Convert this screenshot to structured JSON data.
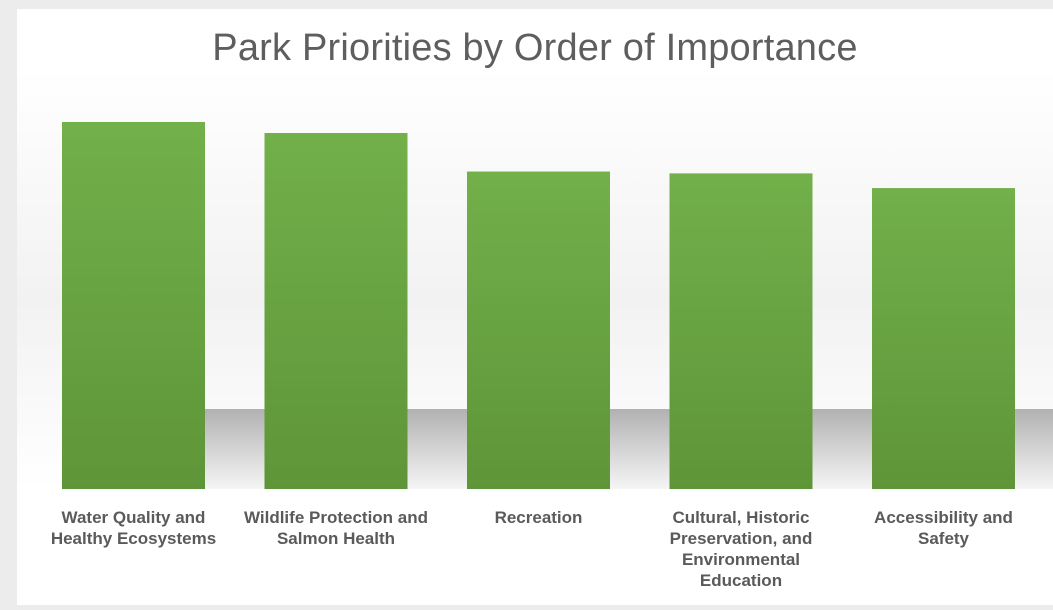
{
  "chart_data": {
    "type": "bar",
    "title": "Park Priorities by Order of Importance",
    "categories": [
      "Water Quality and Healthy Ecosystems",
      "Wildlife Protection and Salmon Health",
      "Recreation",
      "Cultural, Historic Preservation, and Environmental Education",
      "Accessibility and Safety"
    ],
    "values": [
      100,
      97,
      86.5,
      86,
      82
    ],
    "ylim": [
      0,
      100
    ],
    "xlabel": "",
    "ylabel": "",
    "grid": false,
    "legend": "none",
    "bar_color": "#6aa744"
  }
}
